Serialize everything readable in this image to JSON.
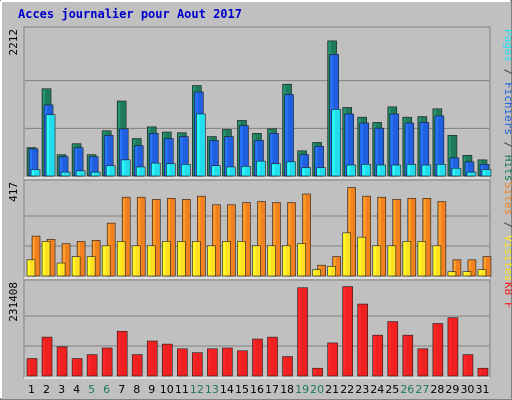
{
  "title": "Acces journalier pour Aout 2017",
  "colors": {
    "hits": "#1e7a5a",
    "pages": "#2060e0",
    "files": "#22ddee",
    "visits": "#f08020",
    "sites": "#ffe020",
    "kb": "#ee2020",
    "weekend_day": "#1e7a5a",
    "weekday": "#000080",
    "title": "#0000cc"
  },
  "chart_data": [
    {
      "type": "bar",
      "panel": "top",
      "max_label": "2212",
      "ylim": [
        0,
        2212
      ],
      "legend": [
        {
          "text": "Pages",
          "color": "#22ddee"
        },
        {
          "text": "/",
          "color": "#404040"
        },
        {
          "text": "Fichiers",
          "color": "#2060e0"
        },
        {
          "text": "/",
          "color": "#404040"
        },
        {
          "text": "Hits",
          "color": "#1e7a5a"
        }
      ],
      "categories": [
        "1",
        "2",
        "3",
        "4",
        "5",
        "6",
        "7",
        "8",
        "9",
        "10",
        "11",
        "12",
        "13",
        "14",
        "15",
        "16",
        "17",
        "18",
        "19",
        "20",
        "21",
        "22",
        "23",
        "24",
        "25",
        "26",
        "27",
        "28",
        "29",
        "30",
        "31"
      ],
      "series": [
        {
          "name": "Hits",
          "values": [
            440,
            1350,
            330,
            500,
            330,
            700,
            1160,
            580,
            760,
            680,
            670,
            1400,
            610,
            720,
            860,
            660,
            730,
            1420,
            390,
            520,
            2090,
            1060,
            910,
            830,
            1070,
            910,
            920,
            1040,
            630,
            320,
            250
          ]
        },
        {
          "name": "Fichiers",
          "values": [
            420,
            1100,
            300,
            440,
            300,
            630,
            730,
            470,
            660,
            580,
            610,
            1300,
            550,
            610,
            780,
            550,
            660,
            1260,
            330,
            460,
            1880,
            960,
            820,
            740,
            960,
            820,
            830,
            930,
            280,
            220,
            180
          ]
        },
        {
          "name": "Pages",
          "values": [
            100,
            950,
            60,
            80,
            60,
            160,
            250,
            140,
            200,
            190,
            180,
            960,
            160,
            140,
            150,
            230,
            190,
            220,
            130,
            130,
            1030,
            170,
            180,
            170,
            170,
            180,
            170,
            180,
            120,
            60,
            100
          ]
        }
      ]
    },
    {
      "type": "bar",
      "panel": "middle",
      "max_label": "417",
      "ylim": [
        0,
        417
      ],
      "legend": [
        {
          "text": "Sites",
          "color": "#f08020"
        },
        {
          "text": "/",
          "color": "#404040"
        },
        {
          "text": "Visites",
          "color": "#ffe020"
        }
      ],
      "categories": [
        "1",
        "2",
        "3",
        "4",
        "5",
        "6",
        "7",
        "8",
        "9",
        "10",
        "11",
        "12",
        "13",
        "14",
        "15",
        "16",
        "17",
        "18",
        "19",
        "20",
        "21",
        "22",
        "23",
        "24",
        "25",
        "26",
        "27",
        "28",
        "29",
        "30",
        "31"
      ],
      "series": [
        {
          "name": "Visites",
          "values": [
            75,
            160,
            60,
            90,
            90,
            140,
            160,
            140,
            140,
            160,
            160,
            160,
            140,
            160,
            160,
            140,
            140,
            140,
            150,
            30,
            45,
            200,
            180,
            140,
            140,
            160,
            160,
            140,
            20,
            20,
            30
          ]
        },
        {
          "name": "Sites",
          "values": [
            185,
            170,
            150,
            160,
            165,
            245,
            365,
            365,
            355,
            360,
            355,
            370,
            330,
            330,
            340,
            345,
            340,
            340,
            380,
            50,
            90,
            410,
            370,
            365,
            355,
            360,
            360,
            345,
            75,
            75,
            90
          ]
        }
      ]
    },
    {
      "type": "bar",
      "panel": "bottom",
      "max_label": "231408",
      "ylim": [
        0,
        231408
      ],
      "legend": [
        {
          "text": "KB F",
          "color": "#ee2020"
        }
      ],
      "categories": [
        "1",
        "2",
        "3",
        "4",
        "5",
        "6",
        "7",
        "8",
        "9",
        "10",
        "11",
        "12",
        "13",
        "14",
        "15",
        "16",
        "17",
        "18",
        "19",
        "20",
        "21",
        "22",
        "23",
        "24",
        "25",
        "26",
        "27",
        "28",
        "29",
        "30",
        "31"
      ],
      "series": [
        {
          "name": "KB F",
          "values": [
            45000,
            100000,
            75000,
            45000,
            55000,
            72000,
            115000,
            55000,
            90000,
            82000,
            70000,
            60000,
            70000,
            72000,
            65000,
            95000,
            100000,
            50000,
            227000,
            20000,
            85000,
            230000,
            185000,
            105000,
            140000,
            105000,
            70000,
            135000,
            150000,
            55000,
            20000
          ]
        }
      ]
    }
  ],
  "x_labels": [
    {
      "text": "1",
      "weekend": false
    },
    {
      "text": "2",
      "weekend": false
    },
    {
      "text": "3",
      "weekend": false
    },
    {
      "text": "4",
      "weekend": false
    },
    {
      "text": "5",
      "weekend": true
    },
    {
      "text": "6",
      "weekend": true
    },
    {
      "text": "7",
      "weekend": false
    },
    {
      "text": "8",
      "weekend": false
    },
    {
      "text": "9",
      "weekend": false
    },
    {
      "text": "10",
      "weekend": false
    },
    {
      "text": "11",
      "weekend": false
    },
    {
      "text": "12",
      "weekend": true
    },
    {
      "text": "13",
      "weekend": true
    },
    {
      "text": "14",
      "weekend": false
    },
    {
      "text": "15",
      "weekend": false
    },
    {
      "text": "16",
      "weekend": false
    },
    {
      "text": "17",
      "weekend": false
    },
    {
      "text": "18",
      "weekend": false
    },
    {
      "text": "19",
      "weekend": true
    },
    {
      "text": "20",
      "weekend": true
    },
    {
      "text": "21",
      "weekend": false
    },
    {
      "text": "22",
      "weekend": false
    },
    {
      "text": "23",
      "weekend": false
    },
    {
      "text": "24",
      "weekend": false
    },
    {
      "text": "25",
      "weekend": false
    },
    {
      "text": "26",
      "weekend": true
    },
    {
      "text": "27",
      "weekend": true
    },
    {
      "text": "28",
      "weekend": false
    },
    {
      "text": "29",
      "weekend": false
    },
    {
      "text": "30",
      "weekend": false
    },
    {
      "text": "31",
      "weekend": false
    }
  ]
}
